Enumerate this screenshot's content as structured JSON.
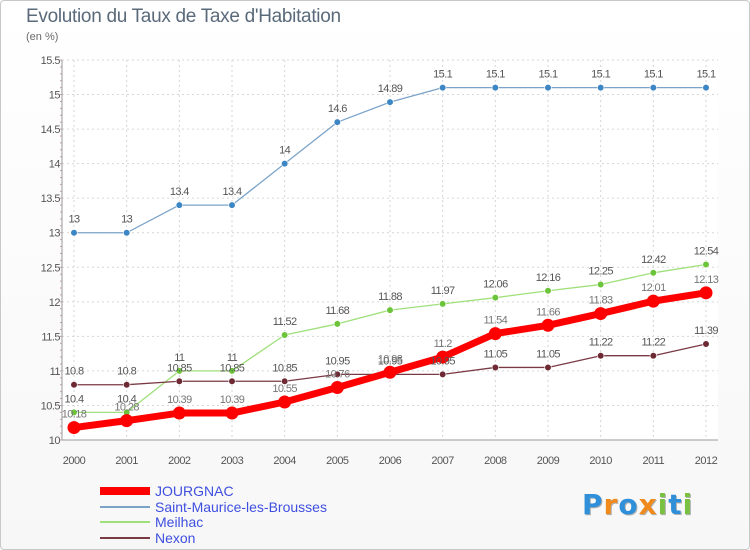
{
  "header": {
    "title": "Evolution du Taux de Taxe d'Habitation",
    "subtitle": "(en %)"
  },
  "chart_data": {
    "type": "line",
    "title": "Evolution du Taux de Taxe d'Habitation",
    "ylabel": "(en %)",
    "xlabel": "",
    "x": [
      "2000",
      "2001",
      "2002",
      "2003",
      "2004",
      "2005",
      "2006",
      "2007",
      "2008",
      "2009",
      "2010",
      "2011",
      "2012"
    ],
    "ylim": [
      10,
      15.5
    ],
    "yticks": [
      10,
      10.5,
      11,
      11.5,
      12,
      12.5,
      13,
      13.5,
      14,
      14.5,
      15,
      15.5
    ],
    "ytick_labels": [
      "10",
      "10.5",
      "11",
      "11.5",
      "12",
      "12.5",
      "13",
      "13.5",
      "14",
      "14.5",
      "15",
      "15.5"
    ],
    "grid": true,
    "legend_position": "bottom-left",
    "series": [
      {
        "name": "Saint-Maurice-les-Brousses",
        "color": "#7ba3c8",
        "marker_color": "#3d86c4",
        "values": [
          13,
          13,
          13.4,
          13.4,
          14,
          14.6,
          14.89,
          15.1,
          15.1,
          15.1,
          15.1,
          15.1,
          15.1
        ],
        "labels": [
          "13",
          "13",
          "13.4",
          "13.4",
          "14",
          "14.6",
          "14.89",
          "15.1",
          "15.1",
          "15.1",
          "15.1",
          "15.1",
          "15.1"
        ]
      },
      {
        "name": "Meilhac",
        "color": "#9fe07a",
        "marker_color": "#6cc43a",
        "values": [
          10.4,
          10.4,
          11,
          11,
          11.52,
          11.68,
          11.88,
          11.97,
          12.06,
          12.16,
          12.25,
          12.42,
          12.54
        ],
        "labels": [
          "10.4",
          "10.4",
          "11",
          "11",
          "11.52",
          "11.68",
          "11.88",
          "11.97",
          "12.06",
          "12.16",
          "12.25",
          "12.42",
          "12.54"
        ]
      },
      {
        "name": "Nexon",
        "color": "#7a3a44",
        "marker_color": "#6e2a34",
        "values": [
          10.8,
          10.8,
          10.85,
          10.85,
          10.85,
          10.95,
          10.95,
          10.95,
          11.05,
          11.05,
          11.22,
          11.22,
          11.39
        ],
        "labels": [
          "10.8",
          "10.8",
          "10.85",
          "10.85",
          "10.85",
          "10.95",
          "10.95",
          "10.95",
          "11.05",
          "11.05",
          "11.22",
          "11.22",
          "11.39"
        ]
      },
      {
        "name": "JOURGNAC",
        "color": "#ff0000",
        "marker_color": "#ff0000",
        "values": [
          10.18,
          10.28,
          10.39,
          10.39,
          10.55,
          10.76,
          10.98,
          11.2,
          11.54,
          11.66,
          11.83,
          12.01,
          12.13
        ],
        "labels": [
          "10.18",
          "10.28",
          "10.39",
          "10.39",
          "10.55",
          "10.76",
          "10.98",
          "11.2",
          "11.54",
          "11.66",
          "11.83",
          "12.01",
          "12.13"
        ]
      }
    ]
  },
  "legend": {
    "items": [
      {
        "label": "JOURGNAC",
        "color": "#ff0000"
      },
      {
        "label": "Saint-Maurice-les-Brousses",
        "color": "#7ba3c8"
      },
      {
        "label": "Meilhac",
        "color": "#9fe07a"
      },
      {
        "label": "Nexon",
        "color": "#7a3a44"
      }
    ]
  },
  "logo": {
    "letters": [
      {
        "char": "P",
        "color": "#2f8fd8"
      },
      {
        "char": "r",
        "color": "#f08a1c"
      },
      {
        "char": "o",
        "color": "#2f8fd8"
      },
      {
        "char": "x",
        "color": "#f08a1c"
      },
      {
        "char": "i",
        "color": "#7ac142"
      },
      {
        "char": "t",
        "color": "#2f8fd8"
      },
      {
        "char": "i",
        "color": "#7ac142"
      }
    ]
  }
}
